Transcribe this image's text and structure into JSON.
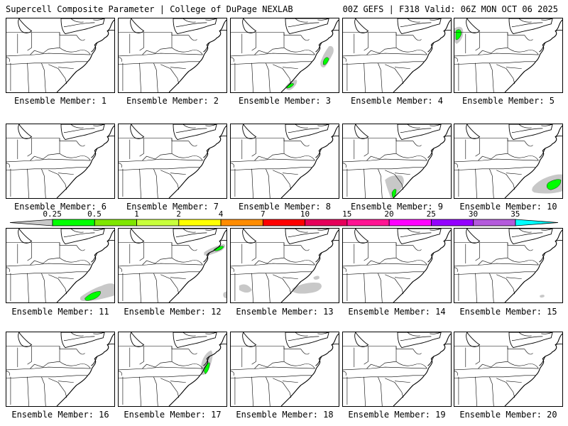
{
  "header": {
    "left": "Supercell Composite Parameter | College of DuPage NEXLAB",
    "right": "00Z GEFS | F318 Valid: 06Z MON OCT 06 2025"
  },
  "panels": [
    {
      "label": "Ensemble Member: 1",
      "features": []
    },
    {
      "label": "Ensemble Member: 2",
      "features": []
    },
    {
      "label": "Ensemble Member: 3",
      "features": [
        "offshore-ne",
        "carolina-coast"
      ]
    },
    {
      "label": "Ensemble Member: 4",
      "features": []
    },
    {
      "label": "Ensemble Member: 5",
      "features": [
        "northwest-corner"
      ]
    },
    {
      "label": "Ensemble Member: 6",
      "features": []
    },
    {
      "label": "Ensemble Member: 7",
      "features": []
    },
    {
      "label": "Ensemble Member: 8",
      "features": []
    },
    {
      "label": "Ensemble Member: 9",
      "features": [
        "southern-carolina"
      ]
    },
    {
      "label": "Ensemble Member: 10",
      "features": [
        "offshore-east"
      ]
    },
    {
      "label": "Ensemble Member: 11",
      "features": [
        "offshore-southeast"
      ]
    },
    {
      "label": "Ensemble Member: 12",
      "features": [
        "north-streak",
        "south-edge"
      ]
    },
    {
      "label": "Ensemble Member: 13",
      "features": [
        "gray-scatter"
      ]
    },
    {
      "label": "Ensemble Member: 14",
      "features": []
    },
    {
      "label": "Ensemble Member: 15",
      "features": [
        "tiny-offshore"
      ]
    },
    {
      "label": "Ensemble Member: 16",
      "features": []
    },
    {
      "label": "Ensemble Member: 17",
      "features": [
        "delmarva"
      ]
    },
    {
      "label": "Ensemble Member: 18",
      "features": []
    },
    {
      "label": "Ensemble Member: 19",
      "features": []
    },
    {
      "label": "Ensemble Member: 20",
      "features": []
    }
  ],
  "colorbar": {
    "labels": [
      "0.25",
      "0.5",
      "1",
      "2",
      "4",
      "7",
      "10",
      "15",
      "20",
      "25",
      "30",
      "35"
    ],
    "colors": [
      "#c8c8c8",
      "#00ff00",
      "#7fe600",
      "#c8ff3c",
      "#ffff00",
      "#ff8c00",
      "#ff0000",
      "#e6005a",
      "#ff1493",
      "#ff00ff",
      "#9400ff",
      "#b45adc",
      "#00ffff"
    ]
  }
}
